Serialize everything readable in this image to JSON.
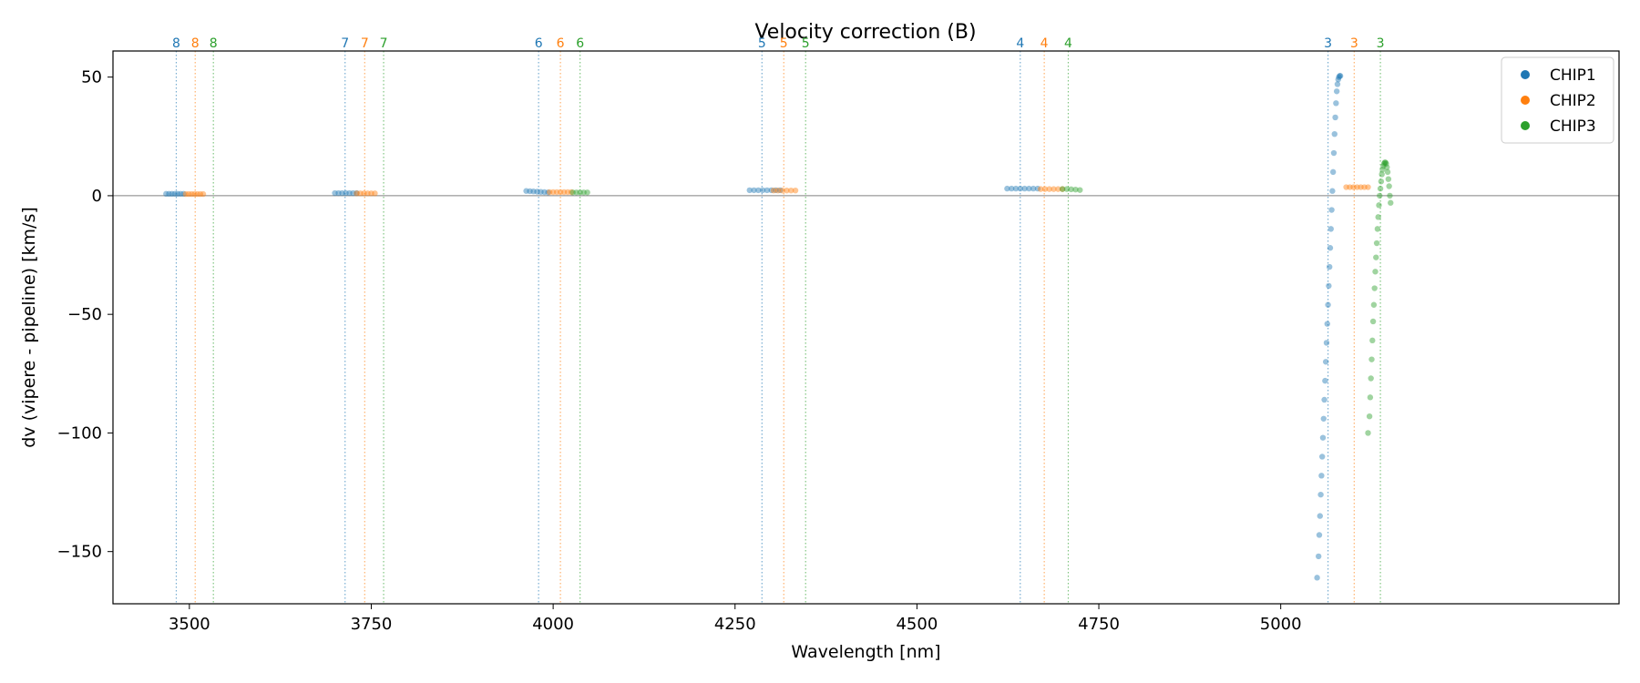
{
  "chart_data": {
    "type": "scatter",
    "title": "Velocity correction (B)",
    "xlabel": "Wavelength [nm]",
    "ylabel": "dv (vipere - pipeline) [km/s]",
    "xlim": [
      3395,
      5465
    ],
    "ylim": [
      -172,
      61
    ],
    "xticks": [
      3500,
      3750,
      4000,
      4250,
      4500,
      4750,
      5000
    ],
    "yticks": [
      -150,
      -100,
      -50,
      0,
      50
    ],
    "zero_line": true,
    "legend_placement": "top-right",
    "series": [
      {
        "name": "CHIP1",
        "color": "#1f77b4",
        "orders": [
          {
            "label": "8",
            "line_x": 3482,
            "points": [
              [
                3468,
                0.8
              ],
              [
                3472,
                0.8
              ],
              [
                3476,
                0.8
              ],
              [
                3480,
                0.8
              ],
              [
                3484,
                0.8
              ],
              [
                3488,
                0.8
              ],
              [
                3492,
                0.8
              ]
            ]
          },
          {
            "label": "7",
            "line_x": 3714,
            "points": [
              [
                3700,
                1.1
              ],
              [
                3705,
                1.1
              ],
              [
                3710,
                1.1
              ],
              [
                3715,
                1.1
              ],
              [
                3720,
                1.1
              ],
              [
                3725,
                1.1
              ],
              [
                3730,
                1.1
              ]
            ]
          },
          {
            "label": "6",
            "line_x": 3980,
            "points": [
              [
                3963,
                2.0
              ],
              [
                3968,
                1.9
              ],
              [
                3973,
                1.8
              ],
              [
                3978,
                1.7
              ],
              [
                3983,
                1.6
              ],
              [
                3988,
                1.5
              ],
              [
                3993,
                1.4
              ]
            ]
          },
          {
            "label": "5",
            "line_x": 4287,
            "points": [
              [
                4270,
                2.3
              ],
              [
                4276,
                2.3
              ],
              [
                4282,
                2.3
              ],
              [
                4288,
                2.3
              ],
              [
                4294,
                2.3
              ],
              [
                4300,
                2.3
              ],
              [
                4306,
                2.3
              ],
              [
                4312,
                2.3
              ]
            ]
          },
          {
            "label": "4",
            "line_x": 4642,
            "points": [
              [
                4624,
                3.0
              ],
              [
                4630,
                3.0
              ],
              [
                4636,
                3.0
              ],
              [
                4642,
                3.0
              ],
              [
                4648,
                3.0
              ],
              [
                4654,
                3.0
              ],
              [
                4660,
                3.0
              ],
              [
                4666,
                3.0
              ]
            ]
          },
          {
            "label": "3",
            "line_x": 5065,
            "points": [
              [
                5050,
                -161
              ],
              [
                5052,
                -152
              ],
              [
                5053,
                -143
              ],
              [
                5054,
                -135
              ],
              [
                5055,
                -126
              ],
              [
                5056,
                -118
              ],
              [
                5057,
                -110
              ],
              [
                5058,
                -102
              ],
              [
                5059,
                -94
              ],
              [
                5060,
                -86
              ],
              [
                5061,
                -78
              ],
              [
                5062,
                -70
              ],
              [
                5063,
                -62
              ],
              [
                5064,
                -54
              ],
              [
                5065,
                -46
              ],
              [
                5066,
                -38
              ],
              [
                5067,
                -30
              ],
              [
                5068,
                -22
              ],
              [
                5069,
                -14
              ],
              [
                5070,
                -6
              ],
              [
                5071,
                2
              ],
              [
                5072,
                10
              ],
              [
                5073,
                18
              ],
              [
                5074,
                26
              ],
              [
                5075,
                33
              ],
              [
                5076,
                39
              ],
              [
                5077,
                44
              ],
              [
                5078,
                47
              ],
              [
                5079,
                49
              ],
              [
                5080,
                50
              ],
              [
                5081,
                50.5
              ],
              [
                5082,
                50.5
              ]
            ]
          }
        ]
      },
      {
        "name": "CHIP2",
        "color": "#ff7f0e",
        "orders": [
          {
            "label": "8",
            "line_x": 3508,
            "points": [
              [
                3495,
                0.7
              ],
              [
                3499,
                0.7
              ],
              [
                3503,
                0.7
              ],
              [
                3507,
                0.7
              ],
              [
                3511,
                0.7
              ],
              [
                3515,
                0.7
              ],
              [
                3519,
                0.7
              ]
            ]
          },
          {
            "label": "7",
            "line_x": 3741,
            "points": [
              [
                3730,
                1.0
              ],
              [
                3735,
                1.0
              ],
              [
                3740,
                1.0
              ],
              [
                3745,
                1.0
              ],
              [
                3750,
                1.0
              ],
              [
                3755,
                1.0
              ]
            ]
          },
          {
            "label": "6",
            "line_x": 4010,
            "points": [
              [
                3995,
                1.5
              ],
              [
                4000,
                1.5
              ],
              [
                4005,
                1.5
              ],
              [
                4010,
                1.5
              ],
              [
                4015,
                1.5
              ],
              [
                4020,
                1.5
              ],
              [
                4025,
                1.5
              ]
            ]
          },
          {
            "label": "5",
            "line_x": 4317,
            "points": [
              [
                4303,
                2.2
              ],
              [
                4309,
                2.2
              ],
              [
                4315,
                2.2
              ],
              [
                4321,
                2.2
              ],
              [
                4327,
                2.2
              ],
              [
                4333,
                2.2
              ]
            ]
          },
          {
            "label": "4",
            "line_x": 4675,
            "points": [
              [
                4670,
                2.8
              ],
              [
                4676,
                2.8
              ],
              [
                4682,
                2.8
              ],
              [
                4688,
                2.8
              ],
              [
                4694,
                2.8
              ],
              [
                4700,
                2.8
              ]
            ]
          },
          {
            "label": "3",
            "line_x": 5101,
            "points": [
              [
                5090,
                3.6
              ],
              [
                5095,
                3.6
              ],
              [
                5100,
                3.6
              ],
              [
                5105,
                3.6
              ],
              [
                5110,
                3.6
              ],
              [
                5115,
                3.6
              ],
              [
                5120,
                3.6
              ]
            ]
          }
        ]
      },
      {
        "name": "CHIP3",
        "color": "#2ca02c",
        "orders": [
          {
            "label": "8",
            "line_x": 3533,
            "points": []
          },
          {
            "label": "7",
            "line_x": 3767,
            "points": []
          },
          {
            "label": "6",
            "line_x": 4037,
            "points": [
              [
                4027,
                1.4
              ],
              [
                4032,
                1.4
              ],
              [
                4037,
                1.4
              ],
              [
                4042,
                1.4
              ],
              [
                4047,
                1.4
              ]
            ]
          },
          {
            "label": "5",
            "line_x": 4347,
            "points": []
          },
          {
            "label": "4",
            "line_x": 4708,
            "points": [
              [
                4700,
                2.8
              ],
              [
                4706,
                2.8
              ],
              [
                4712,
                2.7
              ],
              [
                4718,
                2.6
              ],
              [
                4724,
                2.4
              ]
            ]
          },
          {
            "label": "3",
            "line_x": 5137,
            "points": [
              [
                5120,
                -100
              ],
              [
                5122,
                -93
              ],
              [
                5123,
                -85
              ],
              [
                5124,
                -77
              ],
              [
                5125,
                -69
              ],
              [
                5126,
                -61
              ],
              [
                5127,
                -53
              ],
              [
                5128,
                -46
              ],
              [
                5129,
                -39
              ],
              [
                5130,
                -32
              ],
              [
                5131,
                -26
              ],
              [
                5132,
                -20
              ],
              [
                5133,
                -14
              ],
              [
                5134,
                -9
              ],
              [
                5135,
                -4
              ],
              [
                5136,
                0
              ],
              [
                5137,
                3
              ],
              [
                5138,
                6
              ],
              [
                5139,
                9
              ],
              [
                5140,
                11
              ],
              [
                5141,
                12.5
              ],
              [
                5142,
                13.5
              ],
              [
                5143,
                14
              ],
              [
                5144,
                14
              ],
              [
                5145,
                13.5
              ],
              [
                5146,
                12
              ],
              [
                5147,
                10
              ],
              [
                5148,
                7
              ],
              [
                5149,
                4
              ],
              [
                5150,
                0
              ],
              [
                5151,
                -3
              ]
            ]
          }
        ]
      }
    ]
  }
}
